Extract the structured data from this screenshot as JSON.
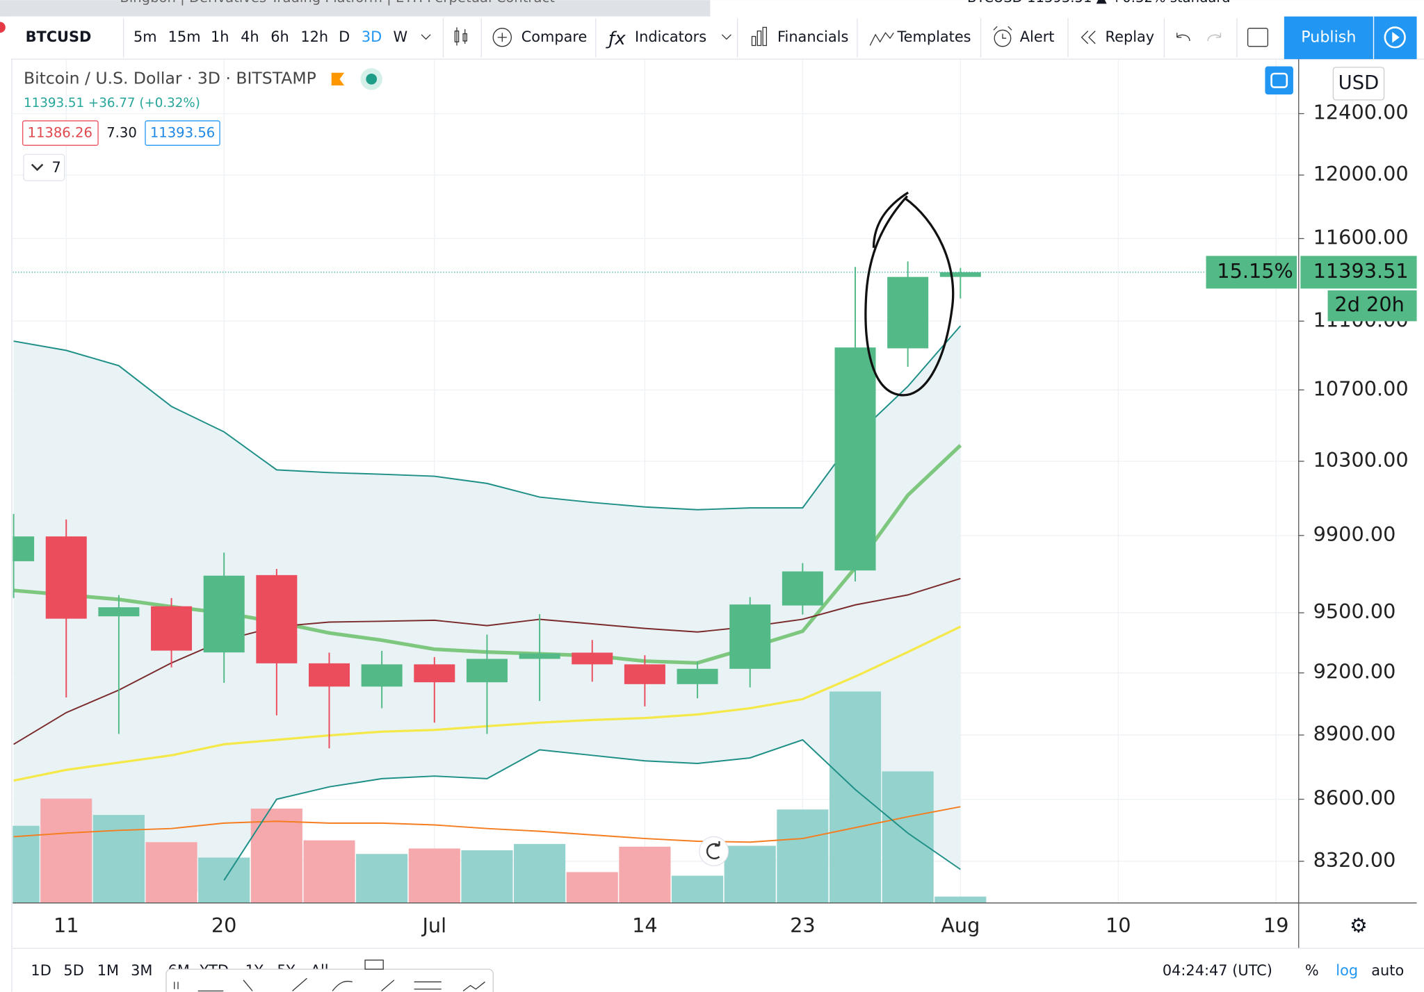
{
  "browser": {
    "tab_left": "Bingbon | Derivatives Trading Platform | ETH Perpetual Contract",
    "tab_right": "BTCUSD 11393.51 ▲ +0.32% standard"
  },
  "toolbar": {
    "symbol": "BTCUSD",
    "intervals": [
      "5m",
      "15m",
      "1h",
      "4h",
      "6h",
      "12h",
      "D",
      "3D",
      "W"
    ],
    "compare": "Compare",
    "indicators": "Indicators",
    "financials": "Financials",
    "templates": "Templates",
    "alert": "Alert",
    "replay": "Replay",
    "publish": "Publish"
  },
  "legend": {
    "title": "Bitcoin / U.S. Dollar · 3D · BITSTAMP",
    "quote": "11393.51 +36.77 (+0.32%)",
    "bid": "11386.26",
    "spread": "7.30",
    "ask": "11393.56",
    "collapsed_count": "7"
  },
  "chart_data": {
    "type": "candlestick",
    "currency": "USD",
    "log_scale": true,
    "grid": true,
    "categories": [
      null,
      "11",
      null,
      null,
      "20",
      null,
      null,
      null,
      "Jul",
      null,
      null,
      null,
      "14",
      null,
      null,
      "23",
      null,
      null,
      "Aug",
      null,
      null,
      "10",
      null,
      null,
      "19"
    ],
    "open": [
      9765,
      9895,
      9482,
      9533,
      9301,
      9693,
      9247,
      9133,
      9242,
      9154,
      9269,
      9300,
      9242,
      9145,
      9220,
      9537,
      9717,
      10940,
      11365,
      null,
      null,
      null,
      null,
      null,
      null
    ],
    "high": [
      10015,
      9985,
      9590,
      9575,
      9810,
      9725,
      9300,
      9309,
      9278,
      9390,
      9493,
      9363,
      9287,
      9256,
      9580,
      9755,
      11426,
      11459,
      11420,
      null,
      null,
      null,
      null,
      null,
      null
    ],
    "low": [
      9575,
      9080,
      8905,
      9227,
      9151,
      8994,
      8837,
      9028,
      8959,
      8905,
      9063,
      9157,
      9037,
      9076,
      9129,
      9491,
      9660,
      10833,
      11235,
      null,
      null,
      null,
      null,
      null,
      null
    ],
    "close": [
      9895,
      9470,
      9528,
      9310,
      9690,
      9247,
      9133,
      9242,
      9154,
      9269,
      9296,
      9242,
      9145,
      9220,
      9542,
      9712,
      10945,
      11365,
      11393.51,
      null,
      null,
      null,
      null,
      null,
      null
    ],
    "up_color": "#53b987",
    "down_color": "#eb4d5c",
    "volume": [
      85,
      115,
      97,
      67,
      50,
      104,
      69,
      54,
      60,
      58,
      65,
      34,
      62,
      30,
      63,
      103,
      233,
      145,
      7,
      null,
      null,
      null,
      null,
      null,
      null
    ],
    "volume_ylim": [
      0,
      250
    ],
    "volume_up_color": "#94d3cd",
    "volume_down_color": "#f6a9ad",
    "volume_ma": {
      "color": "#f57c1f",
      "values": [
        73,
        77,
        80,
        82,
        88,
        90,
        88,
        88,
        86,
        82,
        79,
        75,
        71,
        68,
        67,
        71,
        83,
        95,
        106,
        null,
        null,
        null,
        null,
        null,
        null
      ]
    },
    "series": [
      {
        "color": "#1e8f86",
        "values": [
          10982,
          10928,
          10839,
          10606,
          10463,
          10253,
          10238,
          10229,
          10218,
          10179,
          10105,
          10076,
          10052,
          10037,
          10047,
          10047,
          10438,
          10720,
          11072,
          null,
          null,
          null,
          null,
          null,
          null
        ]
      },
      {
        "color": "#1e8f86",
        "values": [
          null,
          null,
          null,
          null,
          8236,
          8600,
          8657,
          8695,
          8707,
          8695,
          8830,
          8804,
          8778,
          8766,
          8792,
          8877,
          8645,
          8446,
          8284,
          null,
          null,
          null,
          null,
          null,
          null
        ]
      },
      {
        "color": "#7ec77f",
        "width": 4,
        "values": [
          9614,
          9591,
          9568,
          9531,
          9499,
          9453,
          9398,
          9362,
          9317,
          9303,
          9294,
          9285,
          9258,
          9249,
          9326,
          9407,
          9731,
          10115,
          10388,
          null,
          null,
          null,
          null,
          null,
          null
        ]
      },
      {
        "color": "#7a2a2a",
        "values": [
          8856,
          9007,
          9116,
          9249,
          9362,
          9430,
          9453,
          9457,
          9462,
          9435,
          9467,
          9444,
          9421,
          9403,
          9430,
          9467,
          9540,
          9591,
          9675,
          null,
          null,
          null,
          null,
          null,
          null
        ]
      },
      {
        "color": "#f5e84a",
        "width": 2.5,
        "values": [
          8686,
          8736,
          8770,
          8804,
          8856,
          8877,
          8898,
          8916,
          8924,
          8942,
          8959,
          8972,
          8981,
          8998,
          9028,
          9072,
          9182,
          9303,
          9430,
          null,
          null,
          null,
          null,
          null,
          null
        ]
      }
    ],
    "band_fill": "#e9f3f6",
    "ylim": [
      8137,
      12766
    ],
    "yticks": [
      {
        "value": 8320,
        "label": "8320.00"
      },
      {
        "value": 8600,
        "label": "8600.00"
      },
      {
        "value": 8900,
        "label": "8900.00"
      },
      {
        "value": 9200,
        "label": "9200.00"
      },
      {
        "value": 9500,
        "label": "9500.00"
      },
      {
        "value": 9900,
        "label": "9900.00"
      },
      {
        "value": 10300,
        "label": "10300.00"
      },
      {
        "value": 10700,
        "label": "10700.00"
      },
      {
        "value": 11100,
        "label": "11100.00"
      },
      {
        "value": 11600,
        "label": "11600.00"
      },
      {
        "value": 12000,
        "label": "12000.00"
      },
      {
        "value": 12400,
        "label": "12400.00"
      }
    ],
    "price_marker": {
      "value": 11393.51,
      "percent": "15.15%",
      "countdown": "2d 20h"
    }
  },
  "footer": {
    "ranges": [
      "1D",
      "5D",
      "1M",
      "3M",
      "6M",
      "YTD",
      "1Y",
      "5Y",
      "All"
    ],
    "clock": "04:24:47 (UTC)",
    "percent": "%",
    "log": "log",
    "auto": "auto"
  }
}
